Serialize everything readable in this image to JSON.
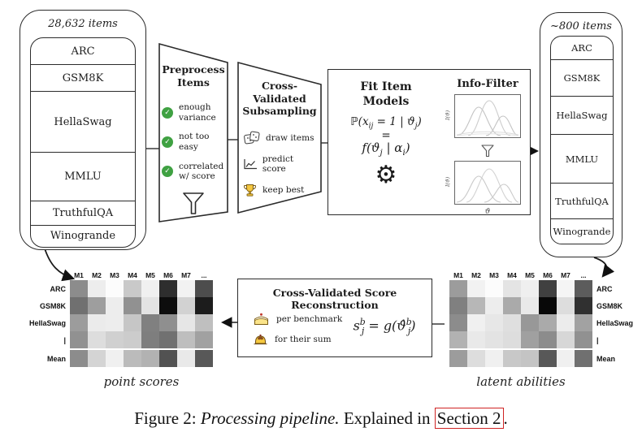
{
  "source_stack": {
    "count_label": "28,632 items",
    "benchmarks": [
      "ARC",
      "GSM8K",
      "HellaSwag",
      "MMLU",
      "TruthfulQA",
      "Winogrande"
    ]
  },
  "result_stack": {
    "count_label": "~800 items",
    "benchmarks": [
      "ARC",
      "GSM8K",
      "HellaSwag",
      "MMLU",
      "TruthfulQA",
      "Winogrande"
    ]
  },
  "preprocess": {
    "title": "Preprocess Items",
    "checks": [
      "enough variance",
      "not too easy",
      "correlated w/ score"
    ]
  },
  "subsampling": {
    "title": "Cross-Validated Subsampling",
    "steps": [
      {
        "icon": "dice",
        "label": "draw items"
      },
      {
        "icon": "line-chart",
        "label": "predict score"
      },
      {
        "icon": "trophy",
        "label": "keep best"
      }
    ]
  },
  "fit_models": {
    "title": "Fit Item Models",
    "formula_line1": [
      {
        "t": "ℙ(x"
      },
      {
        "sub": "ij"
      },
      {
        "t": " = 1 | ϑ"
      },
      {
        "sub": "j"
      },
      {
        "t": ")"
      }
    ],
    "equals": "=",
    "formula_line2": [
      {
        "t": "f(ϑ"
      },
      {
        "sub": "j"
      },
      {
        "t": " | α"
      },
      {
        "sub": "i"
      },
      {
        "t": ")"
      }
    ]
  },
  "info_filter": {
    "title": "Info-Filter",
    "ylabel": "I(ϑ)",
    "xlabel": "ϑ"
  },
  "reconstruction": {
    "title": "Cross-Validated Score Reconstruction",
    "items": [
      {
        "icon": "shortcake",
        "label": "per benchmark"
      },
      {
        "icon": "pudding",
        "label": "for their sum"
      }
    ],
    "formula": [
      {
        "t": "s"
      },
      {
        "sup": "b"
      },
      {
        "sub": "j"
      },
      {
        "t": " = g(ϑ̂"
      },
      {
        "sup": "b"
      },
      {
        "sub": "j"
      },
      {
        "t": ")"
      }
    ]
  },
  "heatmaps": {
    "columns": [
      "M1",
      "M2",
      "M3",
      "M4",
      "M5",
      "M6",
      "M7",
      "..."
    ],
    "rows": [
      "ARC",
      "GSM8K",
      "HellaSwag",
      "|",
      "Mean"
    ],
    "left": {
      "caption": "point scores",
      "cells": [
        [
          "#8c8c8c",
          "#ededed",
          "#fcfcfc",
          "#c9c9c9",
          "#f0f0f0",
          "#2e2e2e",
          "#f2f2f2",
          "#4d4d4d"
        ],
        [
          "#707070",
          "#9e9e9e",
          "#ededed",
          "#919191",
          "#e3e3e3",
          "#0d0d0d",
          "#d2d2d2",
          "#1c1c1c"
        ],
        [
          "#9c9c9c",
          "#ebebeb",
          "#ededed",
          "#c6c6c6",
          "#808080",
          "#8f8f8f",
          "#e6e6e6",
          "#bfbfbf"
        ],
        [
          "#919191",
          "#dddddd",
          "#d0d0d0",
          "#cccccc",
          "#7e7e7e",
          "#717171",
          "#bebebe",
          "#a1a1a1"
        ],
        [
          "#8c8c8c",
          "#d4d4d4",
          "#f0f0f0",
          "#bbbbbb",
          "#b2b2b2",
          "#525252",
          "#e9e9e9",
          "#585858"
        ]
      ]
    },
    "right": {
      "caption": "latent abilities",
      "cells": [
        [
          "#9c9c9c",
          "#f2f2f2",
          "#fcfcfc",
          "#e4e4e4",
          "#efefef",
          "#404040",
          "#f5f5f5",
          "#5c5c5c"
        ],
        [
          "#808080",
          "#b7b7b7",
          "#ededed",
          "#aaaaaa",
          "#e9e9e9",
          "#080808",
          "#dddddd",
          "#303030"
        ],
        [
          "#8c8c8c",
          "#f0f0f0",
          "#e7e7e7",
          "#dfdfdf",
          "#989898",
          "#aaaaaa",
          "#ececec",
          "#a2a2a2"
        ],
        [
          "#b2b2b2",
          "#e9e9e9",
          "#e3e3e3",
          "#dddddd",
          "#a0a0a0",
          "#8c8c8c",
          "#d7d7d7",
          "#919191"
        ],
        [
          "#9c9c9c",
          "#dddddd",
          "#f0f0f0",
          "#c8c8c8",
          "#c4c4c4",
          "#585858",
          "#f0f0f0",
          "#707070"
        ]
      ]
    }
  },
  "figure_caption": {
    "prefix": "Figure 2: ",
    "italic": "Processing pipeline.",
    "middle": " Explained in ",
    "link": "Section 2",
    "suffix": "."
  },
  "colors": {
    "check_green": "#3fa142",
    "trophy_gold": "#f4c63f",
    "link_red": "#cf2323"
  }
}
